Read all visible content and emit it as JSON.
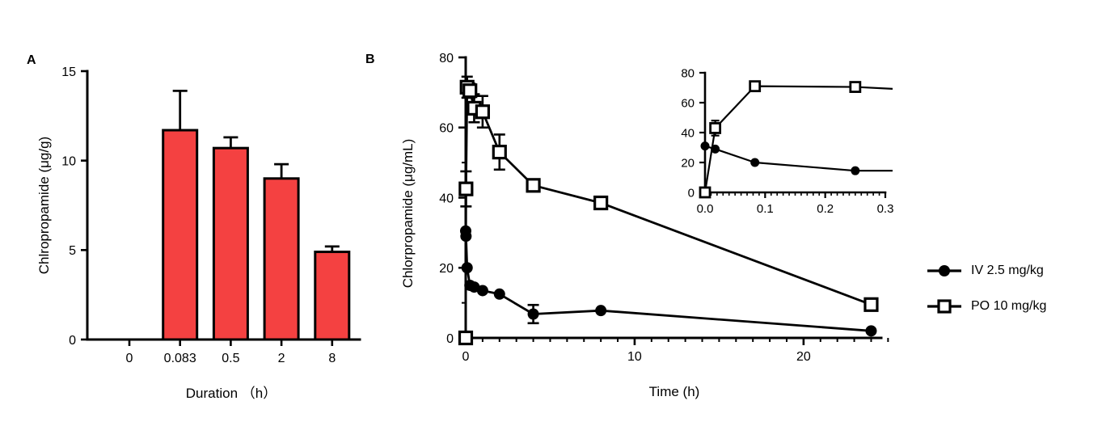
{
  "figure": {
    "panel_a_label": "A",
    "panel_b_label": "B",
    "background": "#ffffff",
    "ink_color": "#000000"
  },
  "legend": {
    "position": "right",
    "items": [
      {
        "label": "IV 2.5 mg/kg",
        "marker": "filled-circle"
      },
      {
        "label": "PO 10 mg/kg",
        "marker": "open-square"
      }
    ]
  },
  "chart_data": [
    {
      "id": "panel-a",
      "type": "bar",
      "title": "",
      "xlabel": "Duration （h）",
      "ylabel": "Chlropropamide (μg/g)",
      "categories": [
        "0",
        "0.083",
        "0.5",
        "2",
        "8"
      ],
      "values": [
        0,
        11.7,
        10.7,
        9.0,
        4.9
      ],
      "errors": [
        0,
        2.2,
        0.6,
        0.8,
        0.3
      ],
      "error_style": "upper-sd-cap",
      "bar_color": "#F44141",
      "bar_outline": "#000000",
      "ylim": [
        0,
        15
      ],
      "yticks": [
        0,
        5,
        10,
        15
      ],
      "ytick_labels": [
        "0",
        "5",
        "10",
        "15"
      ],
      "grid": false
    },
    {
      "id": "panel-b",
      "type": "line",
      "title": "",
      "xlabel": "Time (h)",
      "ylabel": "Chlorpropamide (μg/mL)",
      "xlim": [
        0,
        24.6
      ],
      "ylim": [
        0,
        80
      ],
      "xticks": [
        0,
        10,
        20
      ],
      "xtick_labels": [
        "0",
        "10",
        "20"
      ],
      "x_minor_step": 1,
      "yticks": [
        0,
        20,
        40,
        60,
        80
      ],
      "ytick_labels": [
        "0",
        "20",
        "40",
        "60",
        "80"
      ],
      "y_minor_step": 10,
      "grid": false,
      "legend_position": "right",
      "series": [
        {
          "name": "IV 2.5 mg/kg",
          "marker": "filled-circle",
          "x": [
            0,
            0.017,
            0.083,
            0.25,
            0.5,
            1,
            2,
            4,
            8,
            24
          ],
          "y": [
            30.5,
            29,
            20,
            15,
            14.5,
            13.5,
            12.5,
            6.8,
            7.8,
            2
          ],
          "err": [
            0,
            0,
            0,
            0,
            0,
            0,
            0,
            2.6,
            0,
            0
          ]
        },
        {
          "name": "PO 10 mg/kg",
          "marker": "open-square",
          "x": [
            0,
            0.017,
            0.083,
            0.25,
            0.5,
            1,
            2,
            4,
            8,
            24
          ],
          "y": [
            0,
            42.5,
            71.5,
            70.5,
            65.5,
            64.5,
            53,
            43.5,
            38.5,
            9.5
          ],
          "err": [
            0,
            5,
            3,
            2,
            4,
            4.5,
            5,
            1.5,
            1.5,
            0
          ]
        }
      ]
    },
    {
      "id": "panel-b-inset",
      "type": "line",
      "title": "",
      "xlabel": "",
      "ylabel": "",
      "xlim": [
        0,
        0.3
      ],
      "ylim": [
        0,
        80
      ],
      "xticks": [
        0,
        0.1,
        0.2,
        0.3
      ],
      "xtick_labels": [
        "0.0",
        "0.1",
        "0.2",
        "0.3"
      ],
      "x_minor_step": 0.01,
      "yticks": [
        0,
        20,
        40,
        60,
        80
      ],
      "ytick_labels": [
        "0",
        "20",
        "40",
        "60",
        "80"
      ],
      "grid": false,
      "series": [
        {
          "name": "IV 2.5 mg/kg",
          "marker": "filled-circle",
          "x": [
            0,
            0.017,
            0.083,
            0.25,
            0.5
          ],
          "y": [
            31,
            29,
            20,
            14.5,
            14.5
          ],
          "err": [
            0,
            0,
            0,
            0,
            0
          ]
        },
        {
          "name": "PO 10 mg/kg",
          "marker": "open-square",
          "x": [
            0,
            0.017,
            0.083,
            0.25,
            0.5
          ],
          "y": [
            0,
            43,
            71,
            70.5,
            65.5
          ],
          "err": [
            0,
            5,
            2.5,
            0,
            0
          ]
        }
      ]
    }
  ]
}
